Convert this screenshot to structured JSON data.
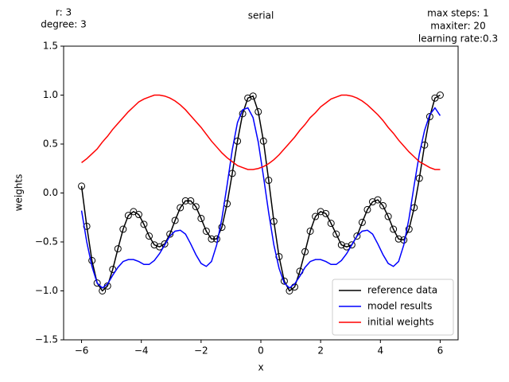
{
  "chart_data": {
    "type": "line",
    "title": "serial",
    "header_left": [
      "r: 3",
      "degree: 3"
    ],
    "header_right": [
      "max steps: 1",
      "maxiter: 20",
      "learning rate:0.3"
    ],
    "x_label": "x",
    "y_label": "weights",
    "xlim": [
      -6.6,
      6.6
    ],
    "ylim": [
      -1.5,
      1.5
    ],
    "xticks": [
      {
        "value": -6,
        "label": "−6"
      },
      {
        "value": -4,
        "label": "−4"
      },
      {
        "value": -2,
        "label": "−2"
      },
      0,
      2,
      4,
      6
    ],
    "yticks": [
      {
        "value": -1.5,
        "label": "−1.5"
      },
      {
        "value": -1,
        "label": "−1.0"
      },
      {
        "value": -0.5,
        "label": "−0.5"
      },
      {
        "value": 0,
        "label": "0.0"
      },
      0.5,
      {
        "value": 1,
        "label": "1.0"
      },
      1.5
    ],
    "grid": false,
    "legend": "lower right",
    "x": [
      -6.0,
      -5.826,
      -5.652,
      -5.478,
      -5.304,
      -5.13,
      -4.957,
      -4.783,
      -4.609,
      -4.435,
      -4.261,
      -4.087,
      -3.913,
      -3.739,
      -3.565,
      -3.391,
      -3.217,
      -3.043,
      -2.87,
      -2.696,
      -2.522,
      -2.348,
      -2.174,
      -2.0,
      -1.826,
      -1.652,
      -1.478,
      -1.304,
      -1.13,
      -0.957,
      -0.783,
      -0.609,
      -0.435,
      -0.261,
      -0.087,
      0.087,
      0.261,
      0.435,
      0.609,
      0.783,
      0.957,
      1.13,
      1.304,
      1.478,
      1.652,
      1.826,
      2.0,
      2.174,
      2.348,
      2.522,
      2.696,
      2.87,
      3.043,
      3.217,
      3.391,
      3.565,
      3.739,
      3.913,
      4.087,
      4.261,
      4.435,
      4.609,
      4.783,
      4.957,
      5.13,
      5.304,
      5.478,
      5.652,
      5.826,
      6.0
    ],
    "series": [
      {
        "name": "reference data",
        "color": "#000000",
        "markers": true,
        "values": [
          0.07,
          -0.34,
          -0.69,
          -0.92,
          -1.0,
          -0.95,
          -0.78,
          -0.57,
          -0.37,
          -0.23,
          -0.19,
          -0.22,
          -0.32,
          -0.44,
          -0.53,
          -0.55,
          -0.52,
          -0.42,
          -0.28,
          -0.15,
          -0.08,
          -0.08,
          -0.14,
          -0.26,
          -0.39,
          -0.47,
          -0.47,
          -0.35,
          -0.11,
          0.2,
          0.53,
          0.81,
          0.97,
          0.99,
          0.83,
          0.53,
          0.13,
          -0.29,
          -0.65,
          -0.9,
          -1.0,
          -0.96,
          -0.8,
          -0.6,
          -0.39,
          -0.24,
          -0.19,
          -0.21,
          -0.31,
          -0.42,
          -0.53,
          -0.55,
          -0.53,
          -0.44,
          -0.3,
          -0.17,
          -0.09,
          -0.07,
          -0.13,
          -0.24,
          -0.37,
          -0.47,
          -0.48,
          -0.37,
          -0.15,
          0.15,
          0.49,
          0.78,
          0.97,
          1.0
        ]
      },
      {
        "name": "model results",
        "color": "#0000ff",
        "markers": false,
        "values": [
          -0.18,
          -0.5,
          -0.75,
          -0.92,
          -0.97,
          -0.93,
          -0.84,
          -0.76,
          -0.7,
          -0.68,
          -0.68,
          -0.7,
          -0.73,
          -0.73,
          -0.69,
          -0.62,
          -0.53,
          -0.44,
          -0.39,
          -0.38,
          -0.42,
          -0.52,
          -0.63,
          -0.72,
          -0.75,
          -0.7,
          -0.53,
          -0.26,
          0.08,
          0.44,
          0.72,
          0.85,
          0.87,
          0.77,
          0.52,
          0.17,
          -0.2,
          -0.53,
          -0.77,
          -0.92,
          -0.97,
          -0.93,
          -0.85,
          -0.76,
          -0.7,
          -0.68,
          -0.68,
          -0.7,
          -0.73,
          -0.73,
          -0.69,
          -0.62,
          -0.53,
          -0.44,
          -0.39,
          -0.38,
          -0.42,
          -0.52,
          -0.63,
          -0.72,
          -0.75,
          -0.7,
          -0.53,
          -0.26,
          0.08,
          0.4,
          0.64,
          0.8,
          0.87,
          0.79
        ]
      },
      {
        "name": "initial weights",
        "color": "#ff0000",
        "markers": false,
        "values": [
          0.31,
          0.35,
          0.4,
          0.45,
          0.52,
          0.58,
          0.65,
          0.71,
          0.77,
          0.83,
          0.88,
          0.93,
          0.96,
          0.98,
          1.0,
          1.0,
          0.99,
          0.97,
          0.94,
          0.9,
          0.85,
          0.79,
          0.73,
          0.67,
          0.6,
          0.53,
          0.47,
          0.41,
          0.36,
          0.32,
          0.28,
          0.26,
          0.24,
          0.24,
          0.25,
          0.27,
          0.3,
          0.34,
          0.39,
          0.45,
          0.51,
          0.57,
          0.64,
          0.7,
          0.77,
          0.82,
          0.88,
          0.92,
          0.96,
          0.98,
          1.0,
          1.0,
          0.99,
          0.97,
          0.94,
          0.9,
          0.85,
          0.8,
          0.74,
          0.67,
          0.61,
          0.54,
          0.48,
          0.42,
          0.37,
          0.32,
          0.29,
          0.26,
          0.24,
          0.24
        ]
      }
    ]
  }
}
